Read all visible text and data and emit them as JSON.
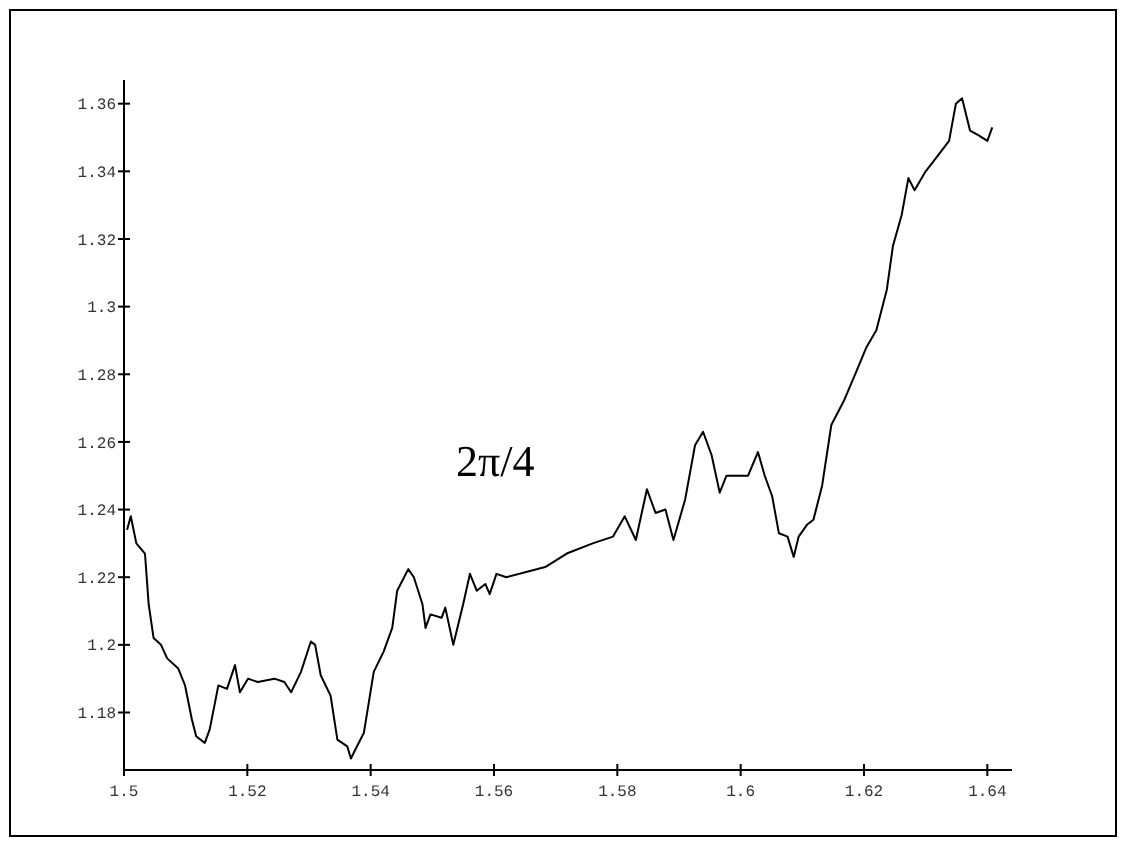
{
  "chart_data": {
    "type": "line",
    "annotations": [
      "2π/4"
    ],
    "xlim": [
      1.5,
      1.644
    ],
    "ylim": [
      1.163,
      1.367
    ],
    "xticks": [
      1.5,
      1.52,
      1.54,
      1.56,
      1.58,
      1.6,
      1.62,
      1.64
    ],
    "yticks": [
      1.18,
      1.2,
      1.22,
      1.24,
      1.26,
      1.28,
      1.3,
      1.32,
      1.34,
      1.36
    ],
    "marker": "none",
    "line_style": "solid",
    "series": [
      {
        "color": "#000000",
        "x": [
          1.5005,
          1.5011,
          1.502,
          1.5034,
          1.504,
          1.5048,
          1.506,
          1.507,
          1.5088,
          1.5099,
          1.511,
          1.5117,
          1.5131,
          1.5139,
          1.5153,
          1.5167,
          1.518,
          1.5188,
          1.5201,
          1.5217,
          1.5244,
          1.526,
          1.5271,
          1.5287,
          1.5303,
          1.531,
          1.5319,
          1.5335,
          1.5346,
          1.5362,
          1.5368,
          1.5375,
          1.5389,
          1.5405,
          1.5421,
          1.5435,
          1.5443,
          1.5461,
          1.547,
          1.5484,
          1.5489,
          1.5497,
          1.5515,
          1.5521,
          1.5534,
          1.555,
          1.5561,
          1.5572,
          1.5586,
          1.5593,
          1.5604,
          1.562,
          1.5683,
          1.5718,
          1.576,
          1.5793,
          1.5812,
          1.583,
          1.5848,
          1.5862,
          1.5878,
          1.5891,
          1.591,
          1.5926,
          1.5939,
          1.5953,
          1.5966,
          1.5977,
          1.6012,
          1.6028,
          1.6039,
          1.6051,
          1.6062,
          1.6076,
          1.6086,
          1.6094,
          1.6108,
          1.6118,
          1.6132,
          1.6147,
          1.6167,
          1.6188,
          1.6204,
          1.622,
          1.6237,
          1.6247,
          1.6261,
          1.6272,
          1.6282,
          1.63,
          1.6317,
          1.6338,
          1.6349,
          1.6359,
          1.6372,
          1.6386,
          1.64,
          1.6408
        ],
        "values": [
          1.234,
          1.238,
          1.23,
          1.227,
          1.212,
          1.202,
          1.2,
          1.196,
          1.193,
          1.188,
          1.178,
          1.173,
          1.171,
          1.175,
          1.188,
          1.187,
          1.194,
          1.186,
          1.19,
          1.189,
          1.19,
          1.189,
          1.186,
          1.192,
          1.201,
          1.2,
          1.191,
          1.185,
          1.172,
          1.17,
          1.1664,
          1.169,
          1.174,
          1.192,
          1.198,
          1.205,
          1.216,
          1.2224,
          1.22,
          1.212,
          1.205,
          1.209,
          1.208,
          1.211,
          1.2,
          1.212,
          1.221,
          1.216,
          1.218,
          1.215,
          1.221,
          1.22,
          1.223,
          1.227,
          1.23,
          1.232,
          1.238,
          1.231,
          1.246,
          1.239,
          1.24,
          1.231,
          1.243,
          1.259,
          1.263,
          1.256,
          1.245,
          1.25,
          1.25,
          1.257,
          1.25,
          1.244,
          1.233,
          1.232,
          1.226,
          1.232,
          1.2356,
          1.237,
          1.247,
          1.265,
          1.272,
          1.281,
          1.288,
          1.293,
          1.305,
          1.318,
          1.327,
          1.338,
          1.3344,
          1.34,
          1.344,
          1.349,
          1.36,
          1.3616,
          1.352,
          1.3506,
          1.349,
          1.353
        ]
      }
    ]
  }
}
